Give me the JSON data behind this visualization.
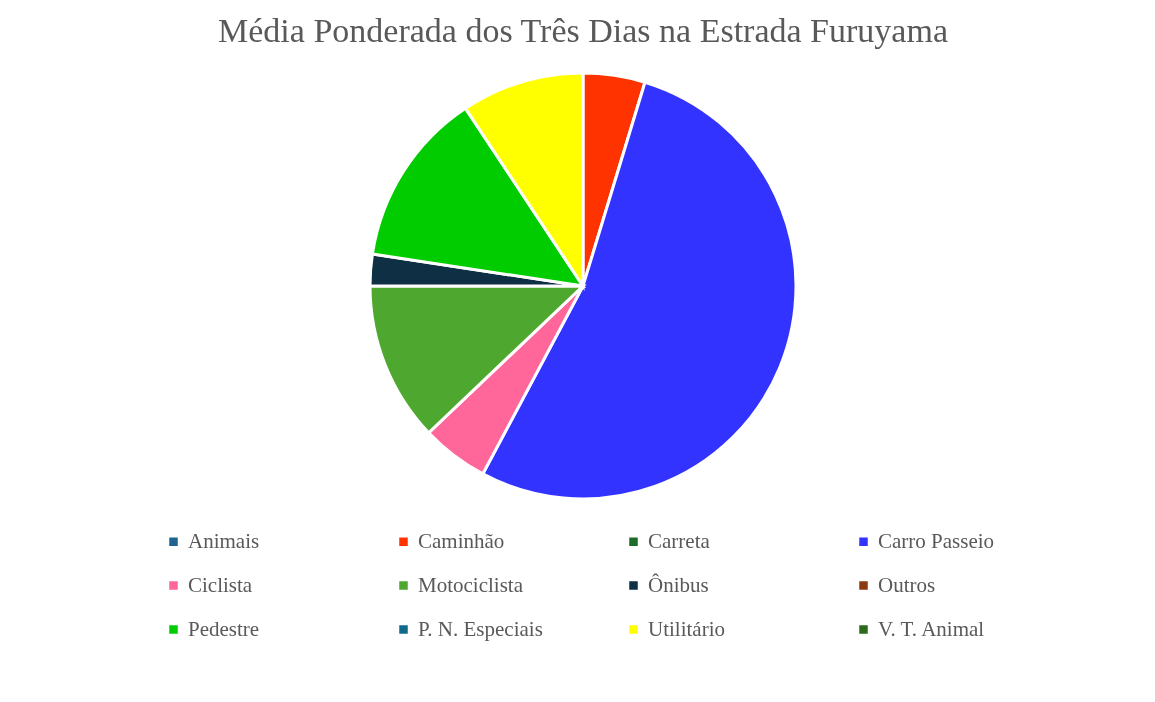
{
  "chart_data": {
    "type": "pie",
    "title": "Média Ponderada dos Três Dias na Estrada Furuyama",
    "categories": [
      "Animais",
      "Caminhão",
      "Carreta",
      "Carro Passeio",
      "Ciclista",
      "Motociclista",
      "Ônibus",
      "Outros",
      "Pedestre",
      "P. N. Especiais",
      "Utilitário",
      "V. T. Animal"
    ],
    "values": [
      0,
      4.7,
      0,
      53.1,
      5.1,
      12.1,
      2.4,
      0,
      13.3,
      0,
      9.3,
      0
    ],
    "colors": [
      "#1f6391",
      "#ff3300",
      "#1e6b2a",
      "#3333ff",
      "#ff6699",
      "#4ea72e",
      "#0e2f44",
      "#8b3a0f",
      "#00cc00",
      "#0f6a8c",
      "#ffff00",
      "#2d6a1a"
    ],
    "legend": "bottom"
  }
}
